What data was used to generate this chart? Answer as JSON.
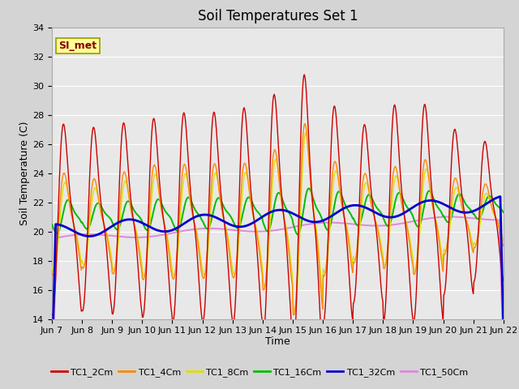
{
  "title": "Soil Temperatures Set 1",
  "xlabel": "Time",
  "ylabel": "Soil Temperature (C)",
  "ylim": [
    14,
    34
  ],
  "yticks": [
    14,
    16,
    18,
    20,
    22,
    24,
    26,
    28,
    30,
    32,
    34
  ],
  "x_tick_labels": [
    "Jun 7",
    "Jun 8",
    "Jun 9",
    "Jun 10",
    "Jun 11",
    "Jun 12",
    "Jun 13",
    "Jun 14",
    "Jun 15",
    "Jun 16",
    "Jun 17",
    "Jun 18",
    "Jun 19",
    "Jun 20",
    "Jun 21",
    "Jun 22"
  ],
  "line_colors": {
    "TC1_2Cm": "#cc0000",
    "TC1_4Cm": "#ff8800",
    "TC1_8Cm": "#dddd00",
    "TC1_16Cm": "#00bb00",
    "TC1_32Cm": "#0000cc",
    "TC1_50Cm": "#dd88dd"
  },
  "legend_labels": [
    "TC1_2Cm",
    "TC1_4Cm",
    "TC1_8Cm",
    "TC1_16Cm",
    "TC1_32Cm",
    "TC1_50Cm"
  ],
  "annotation_text": "SI_met",
  "annotation_fg": "#880000",
  "annotation_bg": "#ffff99",
  "annotation_edge": "#999900",
  "plot_bg_color": "#e8e8e8",
  "fig_bg_color": "#d4d4d4",
  "grid_color": "#ffffff",
  "title_fontsize": 12,
  "axis_label_fontsize": 9,
  "tick_fontsize": 8
}
